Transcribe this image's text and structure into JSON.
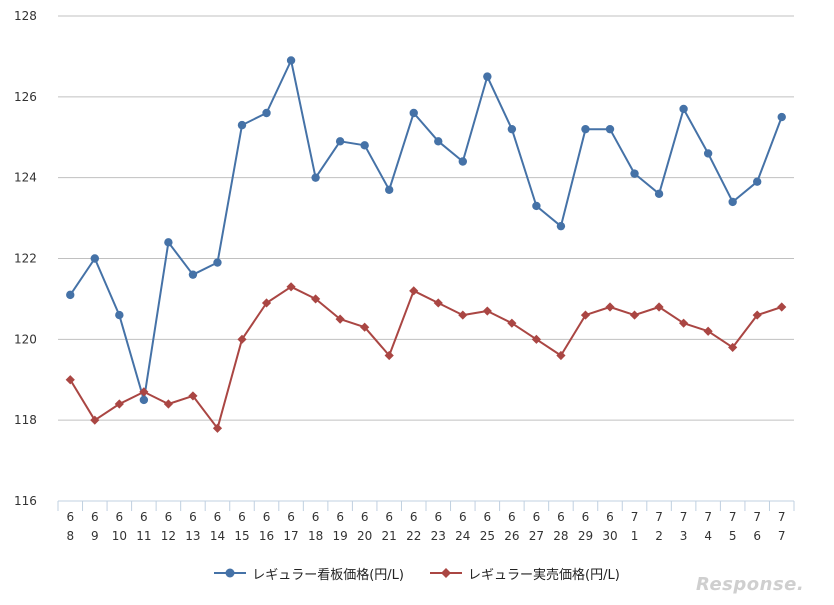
{
  "chart_data": {
    "type": "line",
    "categories": [
      [
        "6",
        "8"
      ],
      [
        "6",
        "9"
      ],
      [
        "6",
        "10"
      ],
      [
        "6",
        "11"
      ],
      [
        "6",
        "12"
      ],
      [
        "6",
        "13"
      ],
      [
        "6",
        "14"
      ],
      [
        "6",
        "15"
      ],
      [
        "6",
        "16"
      ],
      [
        "6",
        "17"
      ],
      [
        "6",
        "18"
      ],
      [
        "6",
        "19"
      ],
      [
        "6",
        "20"
      ],
      [
        "6",
        "21"
      ],
      [
        "6",
        "22"
      ],
      [
        "6",
        "23"
      ],
      [
        "6",
        "24"
      ],
      [
        "6",
        "25"
      ],
      [
        "6",
        "26"
      ],
      [
        "6",
        "27"
      ],
      [
        "6",
        "28"
      ],
      [
        "6",
        "29"
      ],
      [
        "6",
        "30"
      ],
      [
        "7",
        "1"
      ],
      [
        "7",
        "2"
      ],
      [
        "7",
        "3"
      ],
      [
        "7",
        "4"
      ],
      [
        "7",
        "5"
      ],
      [
        "7",
        "6"
      ],
      [
        "7",
        "7"
      ]
    ],
    "series": [
      {
        "name": "レギュラー看板価格(円/L)",
        "color": "#4572a7",
        "marker": "circle",
        "values": [
          121.1,
          122.0,
          120.6,
          118.5,
          122.4,
          121.6,
          121.9,
          125.3,
          125.6,
          126.9,
          124.0,
          124.9,
          124.8,
          123.7,
          125.6,
          124.9,
          124.4,
          126.5,
          125.2,
          123.3,
          122.8,
          125.2,
          125.2,
          124.1,
          123.6,
          125.7,
          124.6,
          123.4,
          123.9,
          125.5
        ]
      },
      {
        "name": "レギュラー実売価格(円/L)",
        "color": "#aa4643",
        "marker": "diamond",
        "values": [
          119.0,
          118.0,
          118.4,
          118.7,
          118.4,
          118.6,
          117.8,
          120.0,
          120.9,
          121.3,
          121.0,
          120.5,
          120.3,
          119.6,
          121.2,
          120.9,
          120.6,
          120.7,
          120.4,
          120.0,
          119.6,
          120.6,
          120.8,
          120.6,
          120.8,
          120.4,
          120.2,
          119.8,
          120.6,
          120.8
        ]
      }
    ],
    "ylim": [
      116,
      128
    ],
    "yticks": [
      116,
      118,
      120,
      122,
      124,
      126,
      128
    ],
    "grid": true,
    "legend_position": "bottom"
  },
  "watermark": {
    "text": "Response."
  }
}
